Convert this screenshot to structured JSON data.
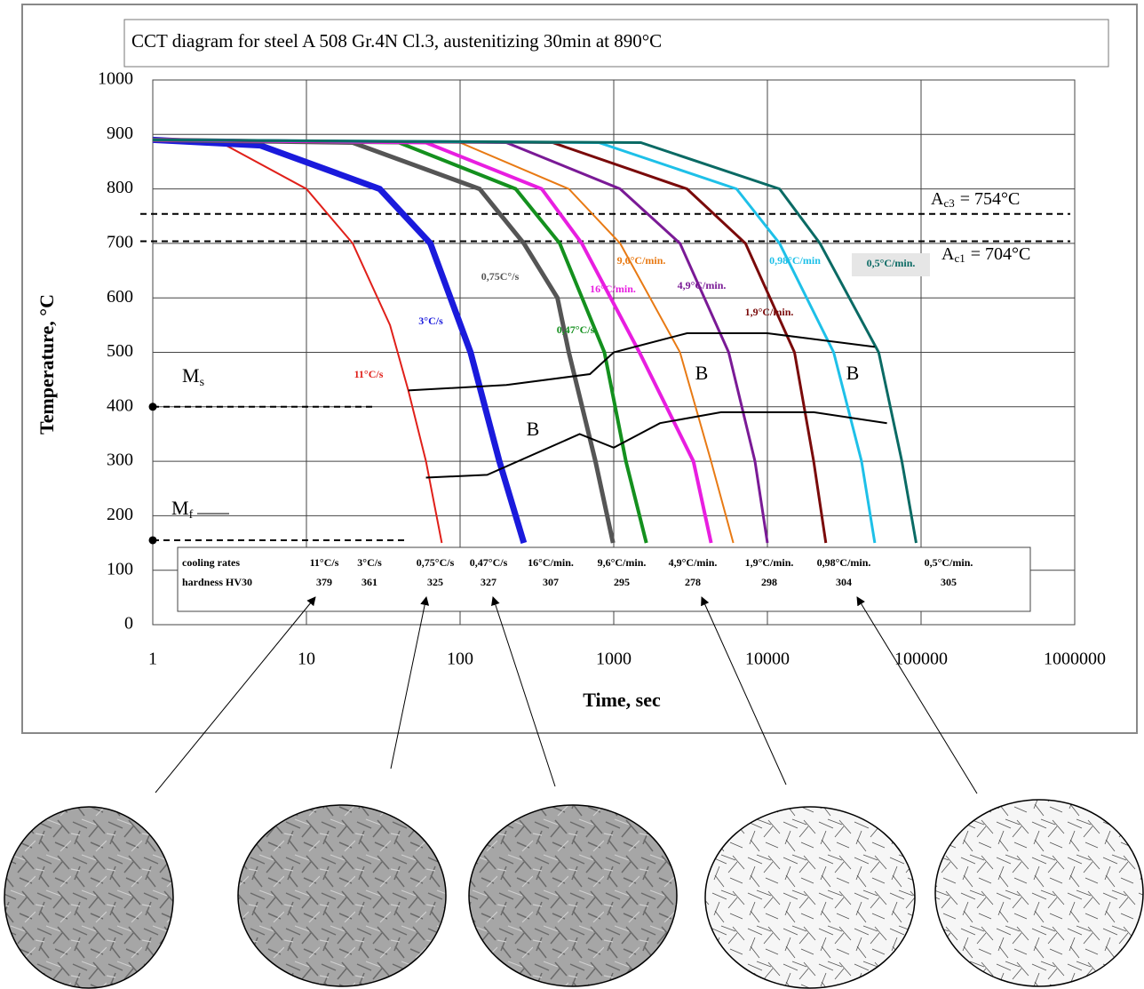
{
  "chart_data": {
    "type": "line",
    "title": "CCT diagram for steel A 508 Gr.4N Cl.3, austenitizing 30min at 890°C",
    "x_label": "Time, sec",
    "y_label": "Temperature, °C",
    "xscale": "log",
    "xlim": [
      1,
      1000000
    ],
    "xticks": [
      1,
      10,
      100,
      1000,
      10000,
      100000,
      1000000
    ],
    "ylim": [
      0,
      1000
    ],
    "yticks": [
      0,
      100,
      200,
      300,
      400,
      500,
      600,
      700,
      800,
      900,
      1000
    ],
    "grid": true,
    "series": [
      {
        "name": "11°C/s",
        "color": "#e0201a",
        "x": [
          1,
          3,
          10,
          20,
          35,
          46,
          60,
          76
        ],
        "values": [
          890,
          880,
          800,
          700,
          550,
          430,
          300,
          150
        ]
      },
      {
        "name": "3°C/s",
        "color": "#1a1adc",
        "x": [
          1,
          5,
          30,
          64,
          117,
          180,
          260
        ],
        "values": [
          890,
          880,
          800,
          700,
          500,
          300,
          150
        ]
      },
      {
        "name": "0,75C°/s",
        "color": "#555555",
        "x": [
          1,
          20,
          134,
          260,
          430,
          510,
          760,
          990
        ],
        "values": [
          890,
          885,
          800,
          700,
          600,
          500,
          300,
          150
        ]
      },
      {
        "name": "0,47°C/s",
        "color": "#14901e",
        "x": [
          1,
          40,
          230,
          445,
          870,
          1200,
          1630
        ],
        "values": [
          890,
          885,
          800,
          700,
          500,
          300,
          150
        ]
      },
      {
        "name": "16°C/min.",
        "color": "#e81ee0",
        "x": [
          1,
          60,
          340,
          620,
          1470,
          3300,
          4300
        ],
        "values": [
          890,
          885,
          800,
          700,
          500,
          300,
          150
        ]
      },
      {
        "name": "9,6°C/min.",
        "color": "#e87a14",
        "x": [
          1,
          100,
          510,
          1100,
          2700,
          4300,
          6000
        ],
        "values": [
          890,
          885,
          800,
          700,
          500,
          300,
          150
        ]
      },
      {
        "name": "4,9°C/min.",
        "color": "#7a1a96",
        "x": [
          1,
          200,
          1100,
          2700,
          5600,
          8300,
          10000
        ],
        "values": [
          890,
          885,
          800,
          700,
          500,
          300,
          150
        ]
      },
      {
        "name": "1,9°C/min.",
        "color": "#7a0a0a",
        "x": [
          1,
          400,
          3000,
          7200,
          15000,
          20000,
          24000
        ],
        "values": [
          890,
          885,
          800,
          700,
          500,
          300,
          150
        ]
      },
      {
        "name": "0,98°C/min",
        "color": "#1ec0e8",
        "x": [
          1,
          800,
          6300,
          12000,
          27000,
          41000,
          50000
        ],
        "values": [
          890,
          885,
          800,
          700,
          500,
          300,
          150
        ]
      },
      {
        "name": "0,5°C/min.",
        "color": "#0a6a64",
        "x": [
          1,
          1500,
          12000,
          22000,
          53000,
          75000,
          93000
        ],
        "values": [
          890,
          885,
          800,
          700,
          500,
          300,
          150
        ]
      },
      {
        "color": "#000000",
        "x": [
          46,
          200,
          700,
          1000,
          3000,
          10000,
          50000
        ],
        "values": [
          430,
          440,
          460,
          500,
          535,
          535,
          510
        ]
      },
      {
        "color": "#000000",
        "x": [
          60,
          150,
          600,
          1000,
          2000,
          5000,
          20000,
          60000
        ],
        "values": [
          270,
          275,
          350,
          325,
          370,
          390,
          390,
          370
        ]
      }
    ],
    "region_labels": [
      "B",
      "B",
      "B"
    ],
    "critical_lines": [
      {
        "symbol": "A",
        "subscript": "c3",
        "text": "= 754°C",
        "value": 754
      },
      {
        "symbol": "A",
        "subscript": "c1",
        "text": "= 704°C",
        "value": 704
      }
    ],
    "martensite_lines": [
      {
        "symbol": "M",
        "subscript": "s",
        "value": 400
      },
      {
        "symbol": "M",
        "subscript": "f",
        "value": 155
      }
    ],
    "table": {
      "rows": [
        {
          "label": "cooling rates",
          "cells": [
            "11°C/s",
            "3°C/s",
            "0,75°C/s",
            "0,47°C/s",
            "16°C/min.",
            "9,6°C/min.",
            "4,9°C/min.",
            "1,9°C/min.",
            "0,98°C/min.",
            "0,5°C/min."
          ]
        },
        {
          "label": "hardness HV30",
          "cells": [
            379,
            361,
            325,
            327,
            307,
            295,
            278,
            298,
            304,
            305
          ]
        }
      ]
    }
  }
}
